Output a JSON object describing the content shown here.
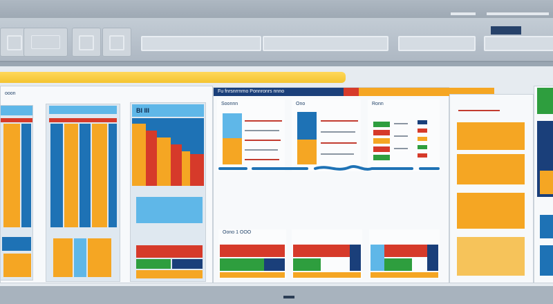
{
  "window": {
    "left_panel_title": "ooon",
    "center_panel_title": "Fu fnrsnrrnrno Ponnronrs nnno",
    "center_card_titles": [
      "Soonnn",
      "Ono",
      "Ronn"
    ],
    "left_card_title": "BI III",
    "mini_cards_title": "Oono 1 OOO"
  },
  "colors": {
    "accent_blue": "#1e72b5",
    "accent_orange": "#f5a623",
    "accent_red": "#d63a2a",
    "accent_green": "#2e9e3e",
    "accent_yellow": "#f4c430"
  },
  "icons": [
    "grid-icon",
    "home-icon",
    "chart-icon",
    "window-icon"
  ]
}
